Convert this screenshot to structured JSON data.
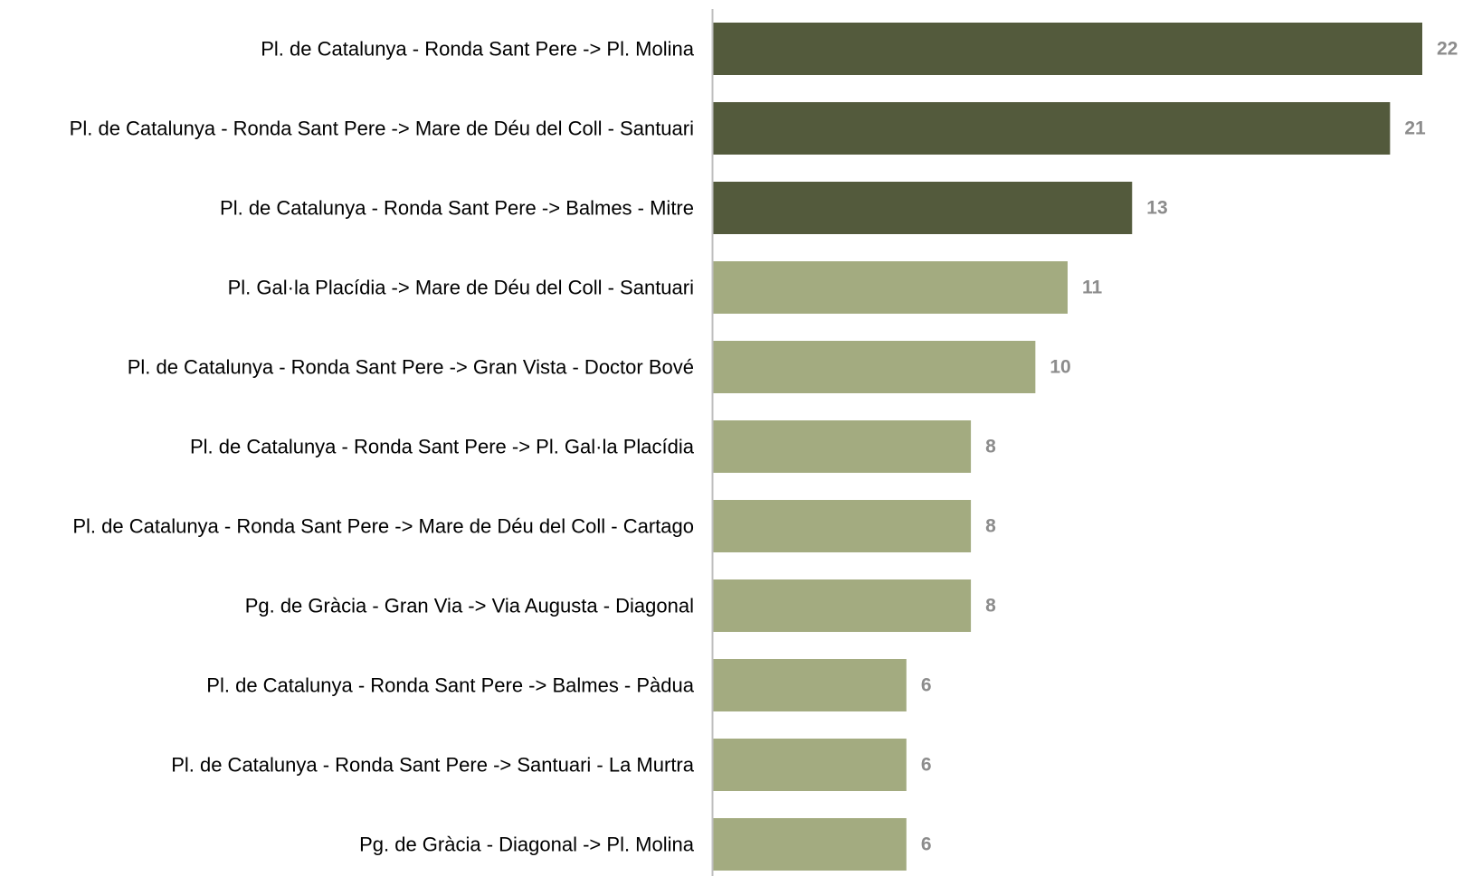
{
  "colors": {
    "highlight_bar": "#535a3c",
    "regular_bar": "#a3ab80",
    "axis_line": "#bfbfbf",
    "category_text": "#000000",
    "value_text": "#8c8c8c",
    "background": "#ffffff"
  },
  "chart_data": {
    "type": "bar",
    "orientation": "horizontal",
    "title": "",
    "xlabel": "",
    "ylabel": "",
    "xlim": [
      0,
      22
    ],
    "grid": false,
    "legend": "none",
    "categories": [
      "Pl. de Catalunya - Ronda Sant Pere -> Pl. Molina",
      "Pl. de Catalunya - Ronda Sant Pere -> Mare de Déu del Coll - Santuari",
      "Pl. de Catalunya - Ronda Sant Pere -> Balmes - Mitre",
      "Pl. Gal·la Placídia -> Mare de Déu del Coll - Santuari",
      "Pl. de Catalunya - Ronda Sant Pere -> Gran Vista - Doctor Bové",
      "Pl. de Catalunya - Ronda Sant Pere -> Pl. Gal·la Placídia",
      "Pl. de Catalunya - Ronda Sant Pere -> Mare de Déu del Coll - Cartago",
      "Pg. de Gràcia - Gran Via -> Via Augusta - Diagonal",
      "Pl. de Catalunya - Ronda Sant Pere -> Balmes - Pàdua",
      "Pl. de Catalunya - Ronda Sant Pere -> Santuari - La Murtra",
      "Pg. de Gràcia - Diagonal -> Pl. Molina"
    ],
    "values": [
      22,
      21,
      13,
      11,
      10,
      8,
      8,
      8,
      6,
      6,
      6
    ],
    "value_labels": [
      "22",
      "21",
      "13",
      "11",
      "10",
      "8",
      "8",
      "8",
      "6",
      "6",
      "6"
    ],
    "highlighted": [
      true,
      true,
      true,
      false,
      false,
      false,
      false,
      false,
      false,
      false,
      false
    ]
  }
}
